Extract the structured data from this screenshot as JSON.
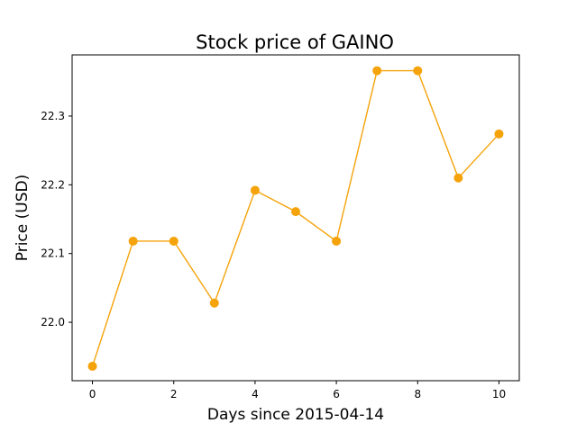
{
  "chart_data": {
    "type": "line",
    "title": "Stock price of GAINO",
    "xlabel": "Days since 2015-04-14",
    "ylabel": "Price (USD)",
    "x": [
      0,
      1,
      2,
      3,
      4,
      5,
      6,
      7,
      8,
      9,
      10
    ],
    "series": [
      {
        "values": [
          21.936,
          22.118,
          22.118,
          22.028,
          22.192,
          22.161,
          22.118,
          22.366,
          22.366,
          22.21,
          22.274
        ]
      }
    ],
    "xlim": [
      -0.5,
      10.5
    ],
    "ylim": [
      21.915,
      22.389
    ],
    "xticks": [
      0,
      2,
      4,
      6,
      8,
      10
    ],
    "yticks": [
      22.0,
      22.1,
      22.2,
      22.3
    ],
    "ytick_labels": [
      "22.0",
      "22.1",
      "22.2",
      "22.3"
    ],
    "grid": false,
    "legend": "none",
    "line_color": "#f5a30a",
    "marker": "circle"
  }
}
